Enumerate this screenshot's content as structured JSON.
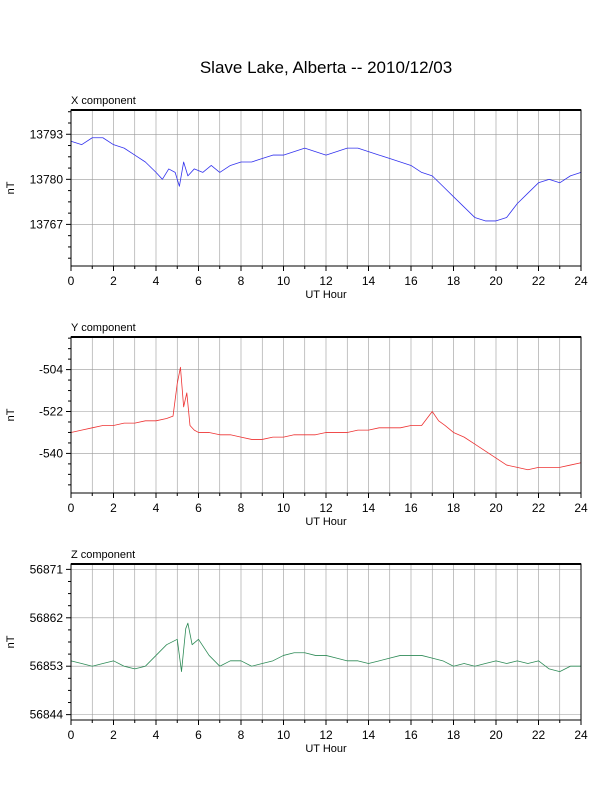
{
  "title": "Slave Lake, Alberta -- 2010/12/03",
  "chart_data": [
    {
      "type": "line",
      "panel_title": "X component",
      "xlabel": "UT Hour",
      "ylabel": "nT",
      "xlim": [
        0,
        24
      ],
      "ylim": [
        13755,
        13800
      ],
      "xticks": [
        0,
        2,
        4,
        6,
        8,
        10,
        12,
        14,
        16,
        18,
        20,
        22,
        24
      ],
      "yticks": [
        13767,
        13780,
        13793
      ],
      "grid": true,
      "color": "#3333ee",
      "series": [
        {
          "x": [
            0,
            0.5,
            1,
            1.5,
            2,
            2.5,
            3,
            3.5,
            4,
            4.3,
            4.6,
            4.9,
            5.1,
            5.3,
            5.5,
            5.8,
            6.2,
            6.6,
            7,
            7.5,
            8,
            8.5,
            9,
            9.5,
            10,
            10.5,
            11,
            11.5,
            12,
            12.5,
            13,
            13.5,
            14,
            14.5,
            15,
            15.5,
            16,
            16.5,
            17,
            17.5,
            18,
            18.5,
            19,
            19.5,
            20,
            20.5,
            21,
            21.5,
            22,
            22.5,
            23,
            23.5,
            24
          ],
          "y": [
            13791,
            13790,
            13792,
            13792,
            13790,
            13789,
            13787,
            13785,
            13782,
            13780,
            13783,
            13782,
            13778,
            13785,
            13781,
            13783,
            13782,
            13784,
            13782,
            13784,
            13785,
            13785,
            13786,
            13787,
            13787,
            13788,
            13789,
            13788,
            13787,
            13788,
            13789,
            13789,
            13788,
            13787,
            13786,
            13785,
            13784,
            13782,
            13781,
            13778,
            13775,
            13772,
            13769,
            13768,
            13768,
            13769,
            13773,
            13776,
            13779,
            13780,
            13779,
            13781,
            13782
          ]
        }
      ]
    },
    {
      "type": "line",
      "panel_title": "Y component",
      "xlabel": "UT Hour",
      "ylabel": "nT",
      "xlim": [
        0,
        24
      ],
      "ylim": [
        -557,
        -490
      ],
      "xticks": [
        0,
        2,
        4,
        6,
        8,
        10,
        12,
        14,
        16,
        18,
        20,
        22,
        24
      ],
      "yticks": [
        -504,
        -522,
        -540
      ],
      "grid": true,
      "color": "#ee3333",
      "series": [
        {
          "x": [
            0,
            0.5,
            1,
            1.5,
            2,
            2.5,
            3,
            3.5,
            4,
            4.5,
            4.8,
            5,
            5.15,
            5.3,
            5.45,
            5.6,
            5.8,
            6,
            6.5,
            7,
            7.5,
            8,
            8.5,
            9,
            9.5,
            10,
            10.5,
            11,
            11.5,
            12,
            12.5,
            13,
            13.5,
            14,
            14.5,
            15,
            15.5,
            16,
            16.5,
            17,
            17.3,
            17.6,
            18,
            18.5,
            19,
            19.5,
            20,
            20.5,
            21,
            21.5,
            22,
            22.5,
            23,
            23.5,
            24
          ],
          "y": [
            -531,
            -530,
            -529,
            -528,
            -528,
            -527,
            -527,
            -526,
            -526,
            -525,
            -524,
            -510,
            -503,
            -520,
            -514,
            -528,
            -530,
            -531,
            -531,
            -532,
            -532,
            -533,
            -534,
            -534,
            -533,
            -533,
            -532,
            -532,
            -532,
            -531,
            -531,
            -531,
            -530,
            -530,
            -529,
            -529,
            -529,
            -528,
            -528,
            -522,
            -526,
            -528,
            -531,
            -533,
            -536,
            -539,
            -542,
            -545,
            -546,
            -547,
            -546,
            -546,
            -546,
            -545,
            -544
          ]
        }
      ]
    },
    {
      "type": "line",
      "panel_title": "Z component",
      "xlabel": "UT Hour",
      "ylabel": "nT",
      "xlim": [
        0,
        24
      ],
      "ylim": [
        56843,
        56872
      ],
      "xticks": [
        0,
        2,
        4,
        6,
        8,
        10,
        12,
        14,
        16,
        18,
        20,
        22,
        24
      ],
      "yticks": [
        56844,
        56853,
        56862,
        56871
      ],
      "grid": true,
      "color": "#2e8b57",
      "series": [
        {
          "x": [
            0,
            0.5,
            1,
            1.5,
            2,
            2.5,
            3,
            3.5,
            4,
            4.5,
            5,
            5.2,
            5.4,
            5.5,
            5.7,
            6,
            6.5,
            7,
            7.5,
            8,
            8.5,
            9,
            9.5,
            10,
            10.5,
            11,
            11.5,
            12,
            12.5,
            13,
            13.5,
            14,
            14.5,
            15,
            15.5,
            16,
            16.5,
            17,
            17.5,
            18,
            18.5,
            19,
            19.5,
            20,
            20.5,
            21,
            21.5,
            22,
            22.5,
            23,
            23.5,
            24
          ],
          "y": [
            56854,
            56853.5,
            56853,
            56853.5,
            56854,
            56853,
            56852.5,
            56853,
            56855,
            56857,
            56858,
            56852,
            56860,
            56861,
            56857,
            56858,
            56855,
            56853,
            56854,
            56854,
            56853,
            56853.5,
            56854,
            56855,
            56855.5,
            56855.5,
            56855,
            56855,
            56854.5,
            56854,
            56854,
            56853.5,
            56854,
            56854.5,
            56855,
            56855,
            56855,
            56854.5,
            56854,
            56853,
            56853.5,
            56853,
            56853.5,
            56854,
            56853.5,
            56854,
            56853.5,
            56854,
            56852.5,
            56852,
            56853,
            56853
          ]
        }
      ]
    }
  ]
}
